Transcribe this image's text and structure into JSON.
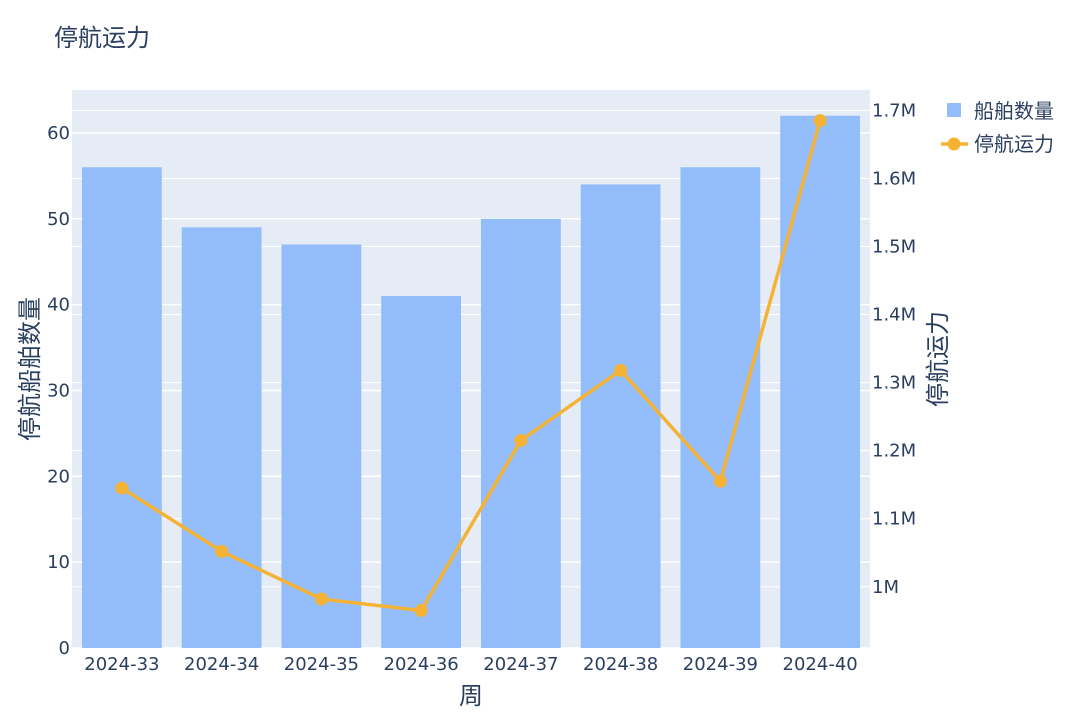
{
  "chart_data": {
    "type": "bar+line",
    "title": "停航运力",
    "xlabel": "周",
    "ylabel_left": "停航船舶数量",
    "ylabel_right": "停航运力",
    "categories": [
      "2024-33",
      "2024-34",
      "2024-35",
      "2024-36",
      "2024-37",
      "2024-38",
      "2024-39",
      "2024-40"
    ],
    "series": [
      {
        "name": "船舶数量",
        "type": "bar",
        "axis": "left",
        "values": [
          56,
          49,
          47,
          41,
          50,
          54,
          56,
          62
        ],
        "color": "#93bcfb"
      },
      {
        "name": "停航运力",
        "type": "line",
        "axis": "right",
        "values": [
          1145000,
          1052000,
          982000,
          965000,
          1215000,
          1318000,
          1155000,
          1685000
        ],
        "color": "#f5b335"
      }
    ],
    "ylim_left": [
      0,
      65
    ],
    "ylim_right": [
      910000,
      1730000
    ],
    "yticks_left": [
      "0",
      "10",
      "20",
      "30",
      "40",
      "50",
      "60"
    ],
    "yticks_right": [
      "1M",
      "1.1M",
      "1.2M",
      "1.3M",
      "1.4M",
      "1.5M",
      "1.6M",
      "1.7M"
    ],
    "grid": true,
    "legend_position": "top-right",
    "plot_bgcolor": "#e5ecf6"
  }
}
